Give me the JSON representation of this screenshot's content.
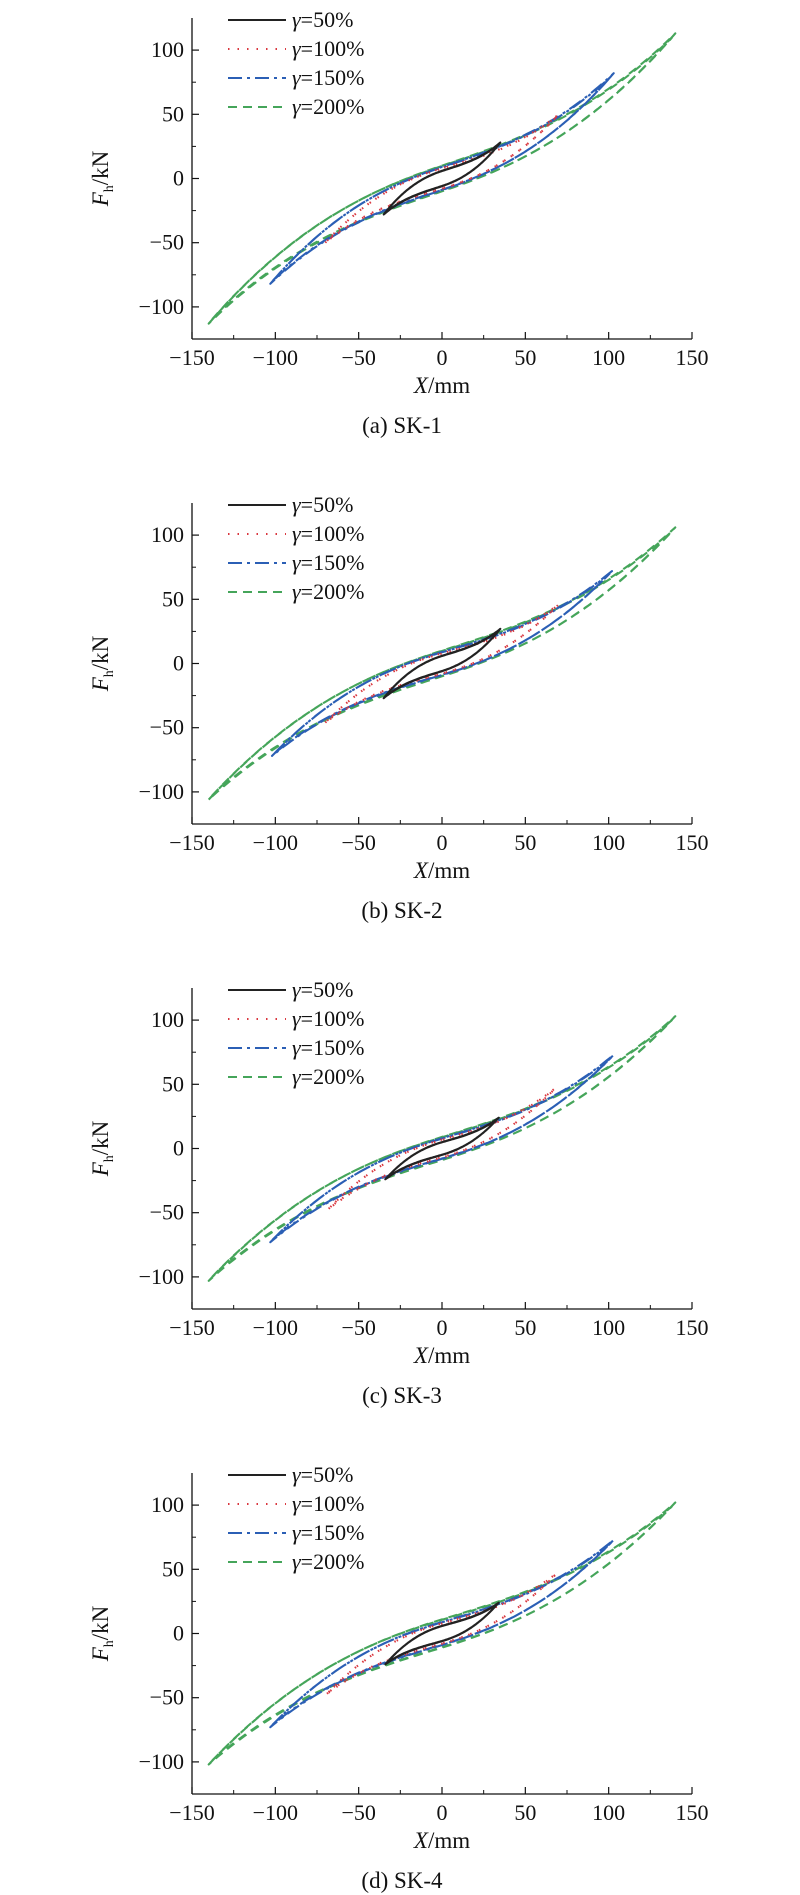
{
  "chart_data": [
    {
      "type": "line",
      "caption": "(a) SK-1",
      "xlabel": {
        "var": "X",
        "unit": "/mm"
      },
      "ylabel": {
        "var": "F",
        "sub": "h",
        "unit": "/kN"
      },
      "xlim": [
        -150,
        150
      ],
      "ylim": [
        -125,
        125
      ],
      "xticks": [
        -150,
        -100,
        -50,
        0,
        50,
        100,
        150
      ],
      "yticks": [
        -100,
        -50,
        0,
        50,
        100
      ],
      "legend": {
        "position": "top-left",
        "prefix": "γ"
      },
      "series": [
        {
          "name": "=50%",
          "color": "#222222",
          "dash": "solid",
          "amplitude": 35,
          "peak": 28,
          "zero_force": 6,
          "zero_disp": 3
        },
        {
          "name": "=100%",
          "color": "#d9363e",
          "dash": "dot",
          "amplitude": 70,
          "peak": 50,
          "zero_force": 8,
          "zero_disp": 12
        },
        {
          "name": "=150%",
          "color": "#2b5fb5",
          "dash": "dashdot",
          "amplitude": 103,
          "peak": 82,
          "zero_force": 9,
          "zero_disp": 18
        },
        {
          "name": "=200%",
          "color": "#45a55a",
          "dash": "dash",
          "amplitude": 140,
          "peak": 113,
          "zero_force": 10,
          "zero_disp": 24
        }
      ]
    },
    {
      "type": "line",
      "caption": "(b) SK-2",
      "xlabel": {
        "var": "X",
        "unit": "/mm"
      },
      "ylabel": {
        "var": "F",
        "sub": "h",
        "unit": "/kN"
      },
      "xlim": [
        -150,
        150
      ],
      "ylim": [
        -125,
        125
      ],
      "xticks": [
        -150,
        -100,
        -50,
        0,
        50,
        100,
        150
      ],
      "yticks": [
        -100,
        -50,
        0,
        50,
        100
      ],
      "legend": {
        "position": "top-left",
        "prefix": "γ"
      },
      "series": [
        {
          "name": "=50%",
          "color": "#222222",
          "dash": "solid",
          "amplitude": 35,
          "peak": 27,
          "zero_force": 6,
          "zero_disp": 3
        },
        {
          "name": "=100%",
          "color": "#d9363e",
          "dash": "dot",
          "amplitude": 70,
          "peak": 46,
          "zero_force": 8,
          "zero_disp": 12
        },
        {
          "name": "=150%",
          "color": "#2b5fb5",
          "dash": "dashdot",
          "amplitude": 102,
          "peak": 72,
          "zero_force": 9,
          "zero_disp": 18
        },
        {
          "name": "=200%",
          "color": "#45a55a",
          "dash": "dash",
          "amplitude": 140,
          "peak": 106,
          "zero_force": 10,
          "zero_disp": 24
        }
      ]
    },
    {
      "type": "line",
      "caption": "(c) SK-3",
      "xlabel": {
        "var": "X",
        "unit": "/mm"
      },
      "ylabel": {
        "var": "F",
        "sub": "h",
        "unit": "/kN"
      },
      "xlim": [
        -150,
        150
      ],
      "ylim": [
        -125,
        125
      ],
      "xticks": [
        -150,
        -100,
        -50,
        0,
        50,
        100,
        150
      ],
      "yticks": [
        -100,
        -50,
        0,
        50,
        100
      ],
      "legend": {
        "position": "top-left",
        "prefix": "γ"
      },
      "series": [
        {
          "name": "=50%",
          "color": "#222222",
          "dash": "solid",
          "amplitude": 34,
          "peak": 24,
          "zero_force": 5,
          "zero_disp": 3
        },
        {
          "name": "=100%",
          "color": "#d9363e",
          "dash": "dot",
          "amplitude": 68,
          "peak": 47,
          "zero_force": 7,
          "zero_disp": 12
        },
        {
          "name": "=150%",
          "color": "#2b5fb5",
          "dash": "dashdot",
          "amplitude": 103,
          "peak": 73,
          "zero_force": 8,
          "zero_disp": 18
        },
        {
          "name": "=200%",
          "color": "#45a55a",
          "dash": "dash",
          "amplitude": 140,
          "peak": 103,
          "zero_force": 9,
          "zero_disp": 24
        }
      ]
    },
    {
      "type": "line",
      "caption": "(d) SK-4",
      "xlabel": {
        "var": "X",
        "unit": "/mm"
      },
      "ylabel": {
        "var": "F",
        "sub": "h",
        "unit": "/kN"
      },
      "xlim": [
        -150,
        150
      ],
      "ylim": [
        -125,
        125
      ],
      "xticks": [
        -150,
        -100,
        -50,
        0,
        50,
        100,
        150
      ],
      "yticks": [
        -100,
        -50,
        0,
        50,
        100
      ],
      "legend": {
        "position": "top-left",
        "prefix": "γ"
      },
      "series": [
        {
          "name": "=50%",
          "color": "#222222",
          "dash": "solid",
          "amplitude": 34,
          "peak": 24,
          "zero_force": 6,
          "zero_disp": 3
        },
        {
          "name": "=100%",
          "color": "#d9363e",
          "dash": "dot",
          "amplitude": 69,
          "peak": 47,
          "zero_force": 8,
          "zero_disp": 12
        },
        {
          "name": "=150%",
          "color": "#2b5fb5",
          "dash": "dashdot",
          "amplitude": 103,
          "peak": 73,
          "zero_force": 9,
          "zero_disp": 18
        },
        {
          "name": "=200%",
          "color": "#45a55a",
          "dash": "dash",
          "amplitude": 140,
          "peak": 102,
          "zero_force": 11,
          "zero_disp": 24
        }
      ]
    }
  ]
}
